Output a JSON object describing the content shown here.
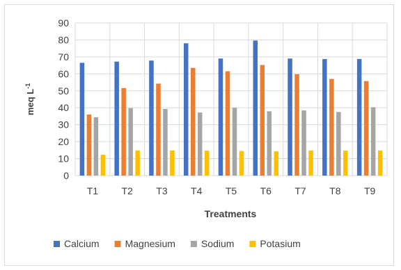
{
  "chart_data": {
    "type": "bar",
    "categories": [
      "T1",
      "T2",
      "T3",
      "T4",
      "T5",
      "T6",
      "T7",
      "T8",
      "T9"
    ],
    "series": [
      {
        "name": "Calcium",
        "color": "#4472C4",
        "values": [
          66.5,
          67.2,
          67.8,
          78.0,
          69.0,
          79.6,
          69.0,
          68.7,
          68.7
        ]
      },
      {
        "name": "Magnesium",
        "color": "#ED7D31",
        "values": [
          36.0,
          51.6,
          54.2,
          63.5,
          61.5,
          65.2,
          59.8,
          57.0,
          55.7
        ]
      },
      {
        "name": "Sodium",
        "color": "#A5A5A5",
        "values": [
          34.4,
          39.8,
          39.3,
          37.2,
          40.0,
          37.9,
          38.4,
          37.5,
          40.3
        ]
      },
      {
        "name": "Potasium",
        "color": "#FFC000",
        "values": [
          12.3,
          14.8,
          14.8,
          14.7,
          14.5,
          14.3,
          14.8,
          14.7,
          14.8
        ]
      }
    ],
    "title": "",
    "xlabel": "Treatments",
    "ylabel": "meq L",
    "ylabel_superscript": "-1",
    "ylim": [
      0,
      90
    ],
    "yticks": [
      "0",
      "10",
      "20",
      "30",
      "40",
      "50",
      "60",
      "70",
      "80",
      "90"
    ],
    "grid": true,
    "legend_position": "bottom"
  }
}
